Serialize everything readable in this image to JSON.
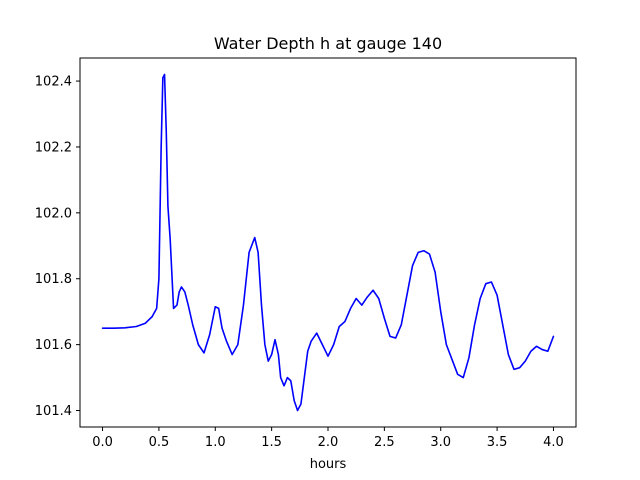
{
  "chart_data": {
    "type": "line",
    "title": "Water Depth h at gauge 140",
    "xlabel": "hours",
    "ylabel": "",
    "xlim": [
      -0.2,
      4.2
    ],
    "ylim": [
      101.35,
      102.47
    ],
    "xticks": [
      0.0,
      0.5,
      1.0,
      1.5,
      2.0,
      2.5,
      3.0,
      3.5,
      4.0
    ],
    "xtick_labels": [
      "0.0",
      "0.5",
      "1.0",
      "1.5",
      "2.0",
      "2.5",
      "3.0",
      "3.5",
      "4.0"
    ],
    "yticks": [
      101.4,
      101.6,
      101.8,
      102.0,
      102.2,
      102.4
    ],
    "ytick_labels": [
      "101.4",
      "101.6",
      "101.8",
      "102.0",
      "102.2",
      "102.4"
    ],
    "grid": false,
    "series": [
      {
        "color": "#0000ff",
        "x": [
          0.0,
          0.1,
          0.2,
          0.3,
          0.38,
          0.44,
          0.48,
          0.5,
          0.52,
          0.535,
          0.55,
          0.565,
          0.58,
          0.6,
          0.63,
          0.66,
          0.68,
          0.7,
          0.73,
          0.76,
          0.8,
          0.85,
          0.9,
          0.95,
          1.0,
          1.03,
          1.06,
          1.1,
          1.15,
          1.2,
          1.25,
          1.3,
          1.35,
          1.38,
          1.41,
          1.44,
          1.47,
          1.5,
          1.53,
          1.56,
          1.58,
          1.61,
          1.64,
          1.67,
          1.7,
          1.73,
          1.76,
          1.79,
          1.82,
          1.85,
          1.9,
          1.95,
          2.0,
          2.05,
          2.1,
          2.15,
          2.2,
          2.25,
          2.3,
          2.35,
          2.4,
          2.45,
          2.5,
          2.55,
          2.6,
          2.65,
          2.7,
          2.75,
          2.8,
          2.85,
          2.9,
          2.95,
          3.0,
          3.05,
          3.1,
          3.15,
          3.2,
          3.25,
          3.3,
          3.35,
          3.4,
          3.45,
          3.5,
          3.55,
          3.6,
          3.65,
          3.7,
          3.75,
          3.8,
          3.85,
          3.9,
          3.95,
          4.0
        ],
        "y": [
          101.65,
          101.65,
          101.651,
          101.655,
          101.665,
          101.685,
          101.71,
          101.8,
          102.2,
          102.41,
          102.42,
          102.25,
          102.02,
          101.92,
          101.71,
          101.72,
          101.76,
          101.775,
          101.76,
          101.72,
          101.66,
          101.6,
          101.575,
          101.63,
          101.715,
          101.71,
          101.65,
          101.61,
          101.57,
          101.6,
          101.72,
          101.88,
          101.925,
          101.88,
          101.72,
          101.6,
          101.55,
          101.57,
          101.615,
          101.57,
          101.5,
          101.475,
          101.5,
          101.49,
          101.43,
          101.4,
          101.42,
          101.5,
          101.58,
          101.61,
          101.635,
          101.6,
          101.565,
          101.6,
          101.655,
          101.67,
          101.71,
          101.74,
          101.72,
          101.745,
          101.765,
          101.74,
          101.68,
          101.625,
          101.62,
          101.66,
          101.75,
          101.84,
          101.88,
          101.885,
          101.875,
          101.82,
          101.7,
          101.6,
          101.555,
          101.51,
          101.5,
          101.56,
          101.66,
          101.74,
          101.785,
          101.79,
          101.75,
          101.66,
          101.57,
          101.525,
          101.53,
          101.55,
          101.58,
          101.595,
          101.585,
          101.58,
          101.625
        ]
      }
    ]
  }
}
